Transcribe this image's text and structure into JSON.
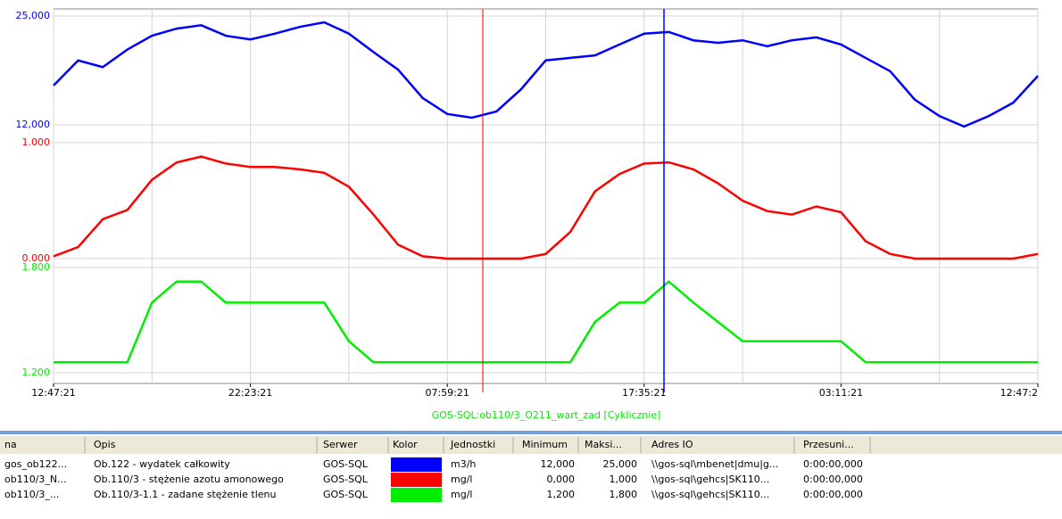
{
  "chart_data": [
    {
      "type": "line",
      "grid": true,
      "ylim": [
        12000,
        25000
      ],
      "yticks": [
        {
          "value": 12000,
          "label": "12,000"
        },
        {
          "value": 25000,
          "label": "25,000"
        }
      ],
      "series": [
        {
          "name": "gos_ob122...",
          "color": "#0000ff",
          "values": [
            16700,
            19700,
            18900,
            21000,
            22650,
            23500,
            23900,
            22650,
            22200,
            22900,
            23700,
            24250,
            22900,
            20700,
            18600,
            15200,
            13300,
            12850,
            13600,
            16250,
            19700,
            20000,
            20300,
            21600,
            22900,
            23100,
            22100,
            21800,
            22100,
            21400,
            22100,
            22450,
            21600,
            20000,
            18400,
            15000,
            13050,
            11800,
            13050,
            14650,
            17850
          ]
        }
      ]
    },
    {
      "type": "line",
      "grid": true,
      "ylim": [
        0,
        1
      ],
      "yticks": [
        {
          "value": 0,
          "label": "0.000"
        },
        {
          "value": 1,
          "label": "1.000"
        }
      ],
      "series": [
        {
          "name": "ob110/3_N...",
          "color": "#ff0000",
          "values": [
            0.02,
            0.1,
            0.34,
            0.42,
            0.68,
            0.83,
            0.88,
            0.82,
            0.79,
            0.79,
            0.77,
            0.74,
            0.62,
            0.38,
            0.12,
            0.02,
            0,
            0,
            0,
            0,
            0.04,
            0.23,
            0.58,
            0.73,
            0.82,
            0.83,
            0.77,
            0.65,
            0.5,
            0.41,
            0.38,
            0.45,
            0.4,
            0.15,
            0.04,
            0,
            0,
            0,
            0,
            0,
            0.04
          ]
        }
      ]
    },
    {
      "type": "line",
      "grid": true,
      "ylim": [
        1.2,
        1.8
      ],
      "yticks": [
        {
          "value": 1.2,
          "label": "1.200"
        },
        {
          "value": 1.8,
          "label": "1.800"
        }
      ],
      "x_label": "GOS-SQL:ob110/3_O211_wart_zad [Cyklicznie]",
      "categories": [
        "12:47:21",
        null,
        null,
        null,
        null,
        null,
        null,
        null,
        "22:23:21",
        null,
        null,
        null,
        null,
        null,
        null,
        null,
        "07:59:21",
        null,
        null,
        null,
        null,
        null,
        null,
        null,
        "17:35:21",
        null,
        null,
        null,
        null,
        null,
        null,
        null,
        "03:11:21",
        null,
        null,
        null,
        null,
        null,
        null,
        null,
        "12:47:2"
      ],
      "series": [
        {
          "name": "ob110/3_...",
          "color": "#00ee00",
          "values": [
            1.26,
            1.26,
            1.26,
            1.26,
            1.6,
            1.72,
            1.72,
            1.6,
            1.6,
            1.6,
            1.6,
            1.6,
            1.38,
            1.26,
            1.26,
            1.26,
            1.26,
            1.26,
            1.26,
            1.26,
            1.26,
            1.26,
            1.49,
            1.6,
            1.6,
            1.72,
            1.6,
            1.49,
            1.38,
            1.38,
            1.38,
            1.38,
            1.38,
            1.26,
            1.26,
            1.26,
            1.26,
            1.26,
            1.26,
            1.26,
            1.26
          ]
        }
      ]
    }
  ],
  "table": {
    "columns": [
      "na",
      "Opis",
      "Serwer",
      "Kolor",
      "Jednostki",
      "Minimum",
      "Maksi...",
      "Adres IO",
      "Przesuni..."
    ],
    "rows": [
      [
        "gos_ob122...",
        "Ob.122 - wydatek całkowity",
        "GOS-SQL",
        "m3/h",
        "12,000",
        "25,000",
        "\\\\gos-sql\\mbenet|dmu|g...",
        "0:00:00,000"
      ],
      [
        "ob110/3_N...",
        "Ob.110/3 - stężenie azotu amonowego",
        "GOS-SQL",
        "mg/l",
        "0,000",
        "1,000",
        "\\\\gos-sql\\gehcs|SK110...",
        "0:00:00,000"
      ],
      [
        "ob110/3_...",
        "Ob.110/3-1.1 - zadane stężenie tlenu",
        "GOS-SQL",
        "mg/l",
        "1,200",
        "1,800",
        "\\\\gos-sql\\gehcs|SK110...",
        "0:00:00,000"
      ]
    ]
  }
}
